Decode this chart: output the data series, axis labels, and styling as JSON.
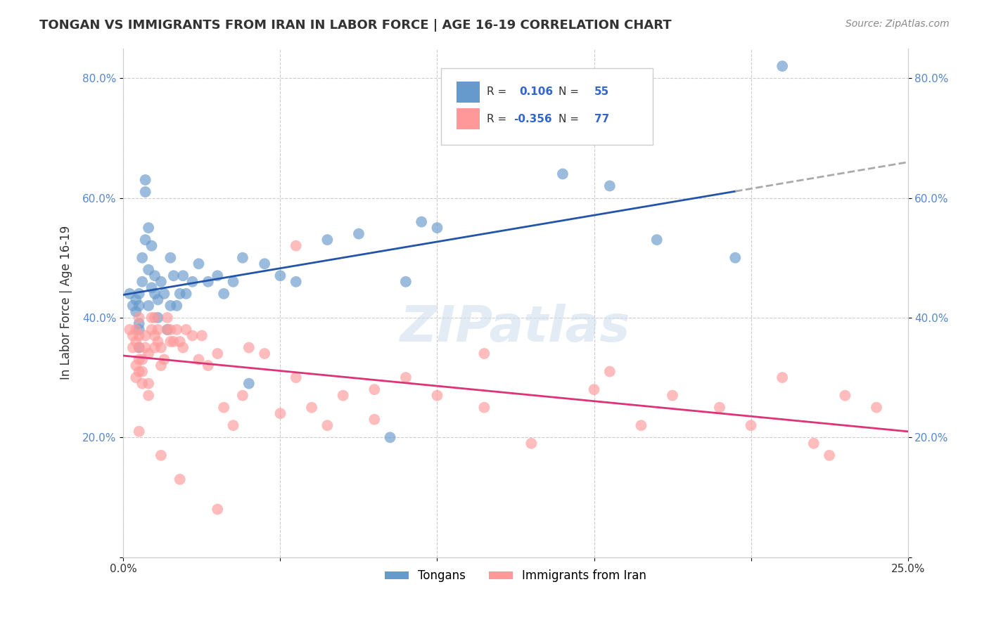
{
  "title": "TONGAN VS IMMIGRANTS FROM IRAN IN LABOR FORCE | AGE 16-19 CORRELATION CHART",
  "source_text": "Source: ZipAtlas.com",
  "ylabel": "In Labor Force | Age 16-19",
  "xlim": [
    0.0,
    0.25
  ],
  "ylim": [
    0.0,
    0.85
  ],
  "ytick_labels": [
    "",
    "20.0%",
    "40.0%",
    "60.0%",
    "80.0%"
  ],
  "ytick_vals": [
    0.0,
    0.2,
    0.4,
    0.6,
    0.8
  ],
  "xtick_labels": [
    "0.0%",
    "",
    "",
    "",
    "",
    "25.0%"
  ],
  "xtick_vals": [
    0.0,
    0.05,
    0.1,
    0.15,
    0.2,
    0.25
  ],
  "grid_color": "#cccccc",
  "background_color": "#ffffff",
  "watermark_text": "ZIPatlas",
  "blue_color": "#6699cc",
  "pink_color": "#ff9999",
  "blue_line_color": "#2255aa",
  "pink_line_color": "#dd3377",
  "blue_R": 0.106,
  "blue_N": 55,
  "pink_R": -0.356,
  "pink_N": 77,
  "tongans_x": [
    0.002,
    0.003,
    0.004,
    0.004,
    0.005,
    0.005,
    0.005,
    0.005,
    0.005,
    0.006,
    0.006,
    0.007,
    0.007,
    0.007,
    0.008,
    0.008,
    0.008,
    0.009,
    0.009,
    0.01,
    0.01,
    0.011,
    0.011,
    0.012,
    0.013,
    0.014,
    0.015,
    0.015,
    0.016,
    0.017,
    0.018,
    0.019,
    0.02,
    0.022,
    0.024,
    0.027,
    0.03,
    0.032,
    0.035,
    0.038,
    0.04,
    0.045,
    0.05,
    0.055,
    0.065,
    0.075,
    0.085,
    0.09,
    0.095,
    0.1,
    0.14,
    0.155,
    0.17,
    0.195,
    0.21
  ],
  "tongans_y": [
    0.44,
    0.42,
    0.43,
    0.41,
    0.38,
    0.42,
    0.44,
    0.39,
    0.35,
    0.46,
    0.5,
    0.53,
    0.61,
    0.63,
    0.55,
    0.48,
    0.42,
    0.52,
    0.45,
    0.44,
    0.47,
    0.4,
    0.43,
    0.46,
    0.44,
    0.38,
    0.42,
    0.5,
    0.47,
    0.42,
    0.44,
    0.47,
    0.44,
    0.46,
    0.49,
    0.46,
    0.47,
    0.44,
    0.46,
    0.5,
    0.29,
    0.49,
    0.47,
    0.46,
    0.53,
    0.54,
    0.2,
    0.46,
    0.56,
    0.55,
    0.64,
    0.62,
    0.53,
    0.5,
    0.82
  ],
  "iran_x": [
    0.002,
    0.003,
    0.003,
    0.004,
    0.004,
    0.004,
    0.004,
    0.005,
    0.005,
    0.005,
    0.005,
    0.005,
    0.006,
    0.006,
    0.006,
    0.007,
    0.007,
    0.008,
    0.008,
    0.008,
    0.009,
    0.009,
    0.01,
    0.01,
    0.01,
    0.011,
    0.011,
    0.012,
    0.012,
    0.013,
    0.014,
    0.014,
    0.015,
    0.015,
    0.016,
    0.017,
    0.018,
    0.019,
    0.02,
    0.022,
    0.024,
    0.025,
    0.027,
    0.03,
    0.032,
    0.035,
    0.038,
    0.04,
    0.045,
    0.05,
    0.055,
    0.06,
    0.065,
    0.07,
    0.08,
    0.09,
    0.1,
    0.115,
    0.13,
    0.15,
    0.155,
    0.165,
    0.175,
    0.19,
    0.2,
    0.21,
    0.22,
    0.225,
    0.23,
    0.24,
    0.005,
    0.012,
    0.018,
    0.03,
    0.055,
    0.08,
    0.115
  ],
  "iran_y": [
    0.38,
    0.35,
    0.37,
    0.3,
    0.32,
    0.36,
    0.38,
    0.31,
    0.33,
    0.35,
    0.37,
    0.4,
    0.29,
    0.31,
    0.33,
    0.35,
    0.37,
    0.27,
    0.29,
    0.34,
    0.38,
    0.4,
    0.35,
    0.37,
    0.4,
    0.36,
    0.38,
    0.32,
    0.35,
    0.33,
    0.38,
    0.4,
    0.36,
    0.38,
    0.36,
    0.38,
    0.36,
    0.35,
    0.38,
    0.37,
    0.33,
    0.37,
    0.32,
    0.34,
    0.25,
    0.22,
    0.27,
    0.35,
    0.34,
    0.24,
    0.3,
    0.25,
    0.22,
    0.27,
    0.28,
    0.3,
    0.27,
    0.25,
    0.19,
    0.28,
    0.31,
    0.22,
    0.27,
    0.25,
    0.22,
    0.3,
    0.19,
    0.17,
    0.27,
    0.25,
    0.21,
    0.17,
    0.13,
    0.08,
    0.52,
    0.23,
    0.34
  ]
}
